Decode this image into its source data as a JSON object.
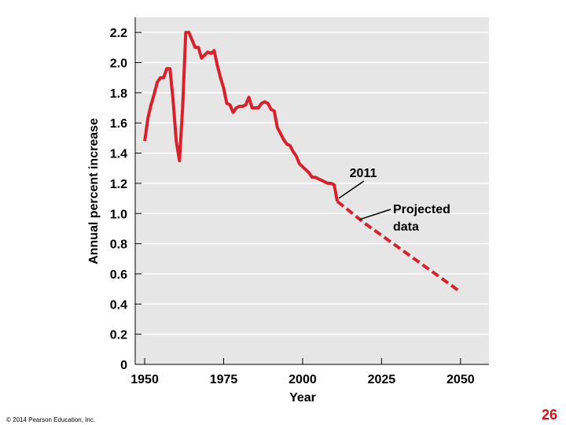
{
  "chart_data": {
    "type": "line",
    "title": "",
    "xlabel": "Year",
    "ylabel": "Annual percent increase",
    "xlim": [
      1947,
      2059
    ],
    "ylim": [
      0,
      2.3
    ],
    "xticks": [
      1950,
      1975,
      2000,
      2025,
      2050
    ],
    "yticks": [
      0,
      0.2,
      0.4,
      0.6,
      0.8,
      1.0,
      1.2,
      1.4,
      1.6,
      1.8,
      2.0,
      2.2
    ],
    "ytick_labels": [
      "0",
      "0.2",
      "0.4",
      "0.6",
      "0.8",
      "1.0",
      "1.2",
      "1.4",
      "1.6",
      "1.8",
      "2.0",
      "2.2"
    ],
    "grid": "horizontal",
    "series": [
      {
        "style": "solid",
        "color": "#d7222c",
        "x": [
          1950,
          1951,
          1952,
          1953,
          1954,
          1955,
          1956,
          1957,
          1958,
          1959,
          1960,
          1961,
          1962,
          1963,
          1964,
          1965,
          1966,
          1967,
          1968,
          1969,
          1970,
          1971,
          1972,
          1973,
          1974,
          1975,
          1976,
          1977,
          1978,
          1979,
          1980,
          1981,
          1982,
          1983,
          1984,
          1985,
          1986,
          1987,
          1988,
          1989,
          1990,
          1991,
          1992,
          1993,
          1994,
          1995,
          1996,
          1997,
          1998,
          1999,
          2000,
          2001,
          2002,
          2003,
          2004,
          2005,
          2006,
          2007,
          2008,
          2009,
          2010,
          2011
        ],
        "y": [
          1.48,
          1.63,
          1.72,
          1.79,
          1.87,
          1.9,
          1.9,
          1.96,
          1.96,
          1.75,
          1.48,
          1.35,
          1.7,
          2.2,
          2.2,
          2.15,
          2.1,
          2.1,
          2.03,
          2.05,
          2.07,
          2.06,
          2.08,
          1.98,
          1.9,
          1.83,
          1.73,
          1.72,
          1.67,
          1.7,
          1.71,
          1.71,
          1.72,
          1.77,
          1.7,
          1.7,
          1.7,
          1.73,
          1.74,
          1.73,
          1.69,
          1.68,
          1.57,
          1.53,
          1.49,
          1.46,
          1.45,
          1.41,
          1.38,
          1.33,
          1.31,
          1.29,
          1.27,
          1.24,
          1.24,
          1.23,
          1.22,
          1.21,
          1.2,
          1.2,
          1.19,
          1.08
        ]
      },
      {
        "style": "dashed",
        "color": "#d7222c",
        "x": [
          2011,
          2020,
          2030,
          2040,
          2050
        ],
        "y": [
          1.08,
          0.93,
          0.78,
          0.63,
          0.48
        ]
      }
    ],
    "annotations": [
      {
        "text": "2011",
        "x": 2011,
        "y": 1.08
      },
      {
        "text": "Projected\ndata",
        "x": 2018,
        "y": 0.96
      }
    ]
  },
  "footer": {
    "copyright": "© 2014 Pearson Education, Inc.",
    "page_number": "26"
  }
}
